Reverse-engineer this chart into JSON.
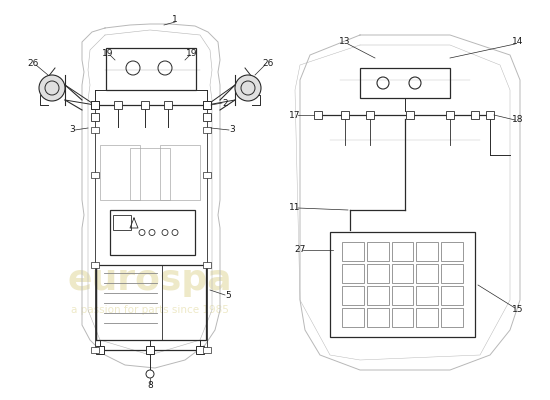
{
  "bg_color": "#ffffff",
  "line_color": "#2a2a2a",
  "car_color": "#b8b8b8",
  "label_color": "#1a1a1a",
  "font_size": 6.5,
  "watermark1": "eurospa",
  "watermark2": "a passion for parts since 1985",
  "wm_color": "#c8b84a",
  "wm_alpha": 0.3
}
